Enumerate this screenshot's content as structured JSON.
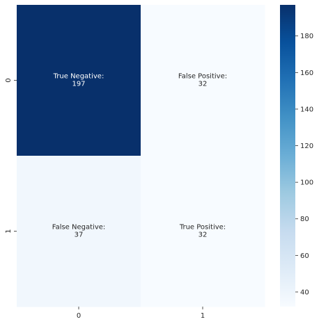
{
  "chart_data": {
    "type": "heatmap",
    "rows": [
      "0",
      "1"
    ],
    "cols": [
      "0",
      "1"
    ],
    "values": [
      [
        197,
        32
      ],
      [
        37,
        32
      ]
    ],
    "cell_text": [
      [
        [
          "True Negative:",
          "197"
        ],
        [
          "False Positive:",
          "32"
        ]
      ],
      [
        [
          "False Negative:",
          "37"
        ],
        [
          "True Positive:",
          "32"
        ]
      ]
    ],
    "colormap": "Blues",
    "colorbar": {
      "min": 32,
      "max": 197,
      "ticks": [
        "40",
        "60",
        "80",
        "100",
        "120",
        "140",
        "160",
        "180"
      ]
    },
    "colors": {
      "low": "#f7fbff",
      "high": "#08306b"
    }
  }
}
